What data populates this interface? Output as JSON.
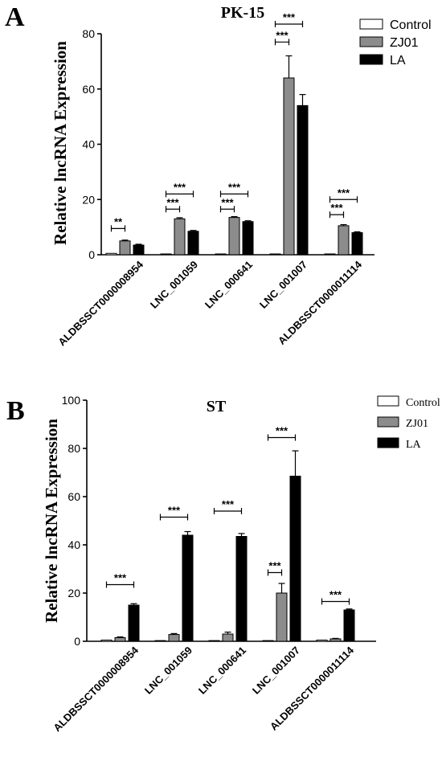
{
  "chart_data": [
    {
      "type": "bar",
      "panel": "A",
      "title": "PK-15",
      "ylabel": "Relative lncRNA Expression",
      "ylim": [
        0,
        80
      ],
      "yticks": [
        0,
        20,
        40,
        60,
        80
      ],
      "legend_position": "top-right",
      "categories": [
        "ALDBSSCT0000008954",
        "LNC_001059",
        "LNC_000641",
        "LNC_001007",
        "ALDBSSCT0000011114"
      ],
      "series": [
        {
          "name": "Control",
          "color": "#ffffff",
          "values": [
            0.5,
            0.3,
            0.3,
            0.3,
            0.3
          ],
          "errors": [
            0,
            0,
            0,
            0,
            0
          ]
        },
        {
          "name": "ZJ01",
          "color": "#8c8c8c",
          "values": [
            5,
            13,
            13.5,
            64,
            10.5
          ],
          "errors": [
            0.3,
            0.4,
            0.3,
            8,
            0.4
          ]
        },
        {
          "name": "LA",
          "color": "#000000",
          "values": [
            3.5,
            8.5,
            12,
            54,
            8
          ],
          "errors": [
            0.3,
            0.3,
            0.3,
            4,
            0.3
          ]
        }
      ],
      "significance": [
        {
          "category": 0,
          "from": 0,
          "to": 1,
          "y": 9.5,
          "label": "**"
        },
        {
          "category": 1,
          "from": 0,
          "to": 1,
          "y": 16.5,
          "label": "***"
        },
        {
          "category": 1,
          "from": 0,
          "to": 2,
          "y": 22,
          "label": "***"
        },
        {
          "category": 2,
          "from": 0,
          "to": 1,
          "y": 16.5,
          "label": "***"
        },
        {
          "category": 2,
          "from": 0,
          "to": 2,
          "y": 22,
          "label": "***"
        },
        {
          "category": 3,
          "from": 0,
          "to": 1,
          "y": 77,
          "label": "***"
        },
        {
          "category": 3,
          "from": 0,
          "to": 2,
          "y": 83.5,
          "label": "***"
        },
        {
          "category": 4,
          "from": 0,
          "to": 1,
          "y": 14.5,
          "label": "***"
        },
        {
          "category": 4,
          "from": 0,
          "to": 2,
          "y": 20,
          "label": "***"
        }
      ]
    },
    {
      "type": "bar",
      "panel": "B",
      "title": "ST",
      "ylabel": "Relative lncRNA Expression",
      "ylim": [
        0,
        100
      ],
      "yticks": [
        0,
        20,
        40,
        60,
        80,
        100
      ],
      "legend_position": "top-right",
      "categories": [
        "ALDBSSCT0000008954",
        "LNC_001059",
        "LNC_000641",
        "LNC_001007",
        "ALDBSSCT0000011114"
      ],
      "series": [
        {
          "name": "Control",
          "color": "#ffffff",
          "values": [
            0.5,
            0.3,
            0.3,
            0.3,
            0.5
          ],
          "errors": [
            0,
            0,
            0,
            0,
            0
          ]
        },
        {
          "name": "ZJ01",
          "color": "#8c8c8c",
          "values": [
            1.5,
            2.8,
            3,
            20,
            1
          ],
          "errors": [
            0.3,
            0.4,
            0.8,
            4,
            0.2
          ]
        },
        {
          "name": "LA",
          "color": "#000000",
          "values": [
            15,
            44,
            43.5,
            68.5,
            13
          ],
          "errors": [
            0.6,
            1.5,
            1.2,
            10.5,
            0.4
          ]
        }
      ],
      "significance": [
        {
          "category": 0,
          "from": 0,
          "to": 2,
          "y": 23.5,
          "label": "***"
        },
        {
          "category": 1,
          "from": 0,
          "to": 2,
          "y": 51.5,
          "label": "***"
        },
        {
          "category": 2,
          "from": 0,
          "to": 2,
          "y": 54,
          "label": "***"
        },
        {
          "category": 3,
          "from": 0,
          "to": 1,
          "y": 28.5,
          "label": "***"
        },
        {
          "category": 3,
          "from": 0,
          "to": 2,
          "y": 84.5,
          "label": "***"
        },
        {
          "category": 4,
          "from": 0,
          "to": 2,
          "y": 16.5,
          "label": "***"
        }
      ]
    }
  ]
}
